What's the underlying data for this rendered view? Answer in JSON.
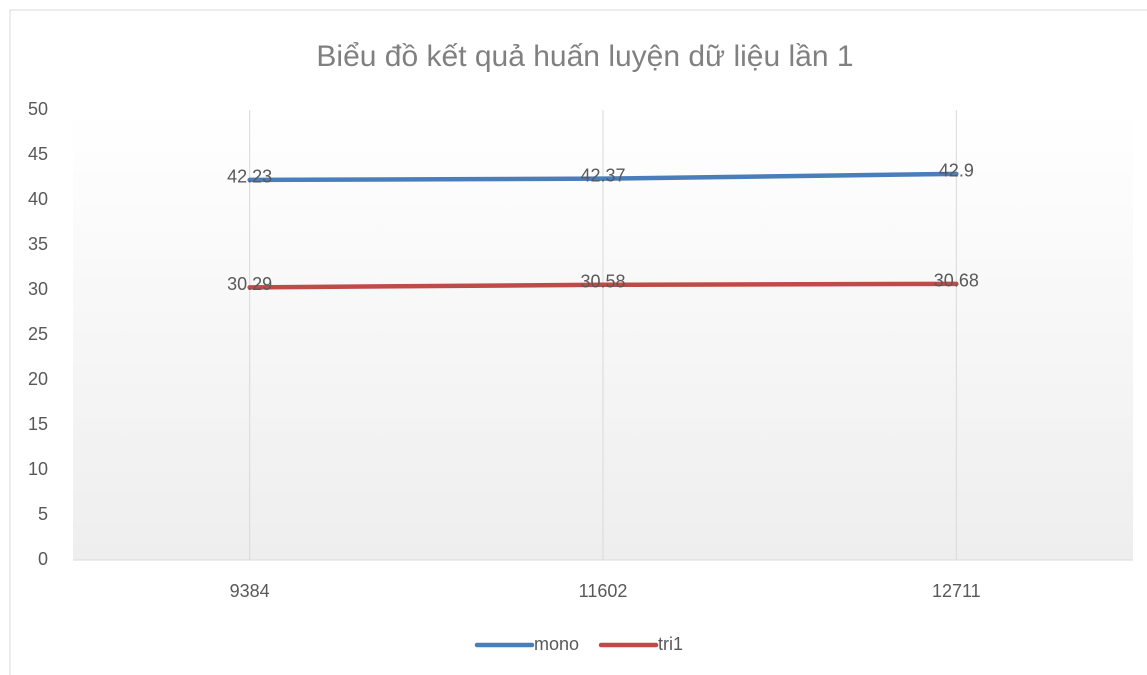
{
  "chart_data": {
    "type": "line",
    "title": "Biểu đồ kết quả huấn luyện dữ liệu lần 1",
    "categories": [
      "9384",
      "11602",
      "12711"
    ],
    "series": [
      {
        "name": "mono",
        "color": "#4a7ebb",
        "values": [
          42.23,
          42.37,
          42.9
        ]
      },
      {
        "name": "tri1",
        "color": "#be4b48",
        "values": [
          30.29,
          30.58,
          30.68
        ]
      }
    ],
    "ylim": [
      0,
      50
    ],
    "yticks": [
      0,
      5,
      10,
      15,
      20,
      25,
      30,
      35,
      40,
      45,
      50
    ],
    "xgrid": true,
    "ygrid": false,
    "legend": "bottom",
    "data_labels": true
  }
}
